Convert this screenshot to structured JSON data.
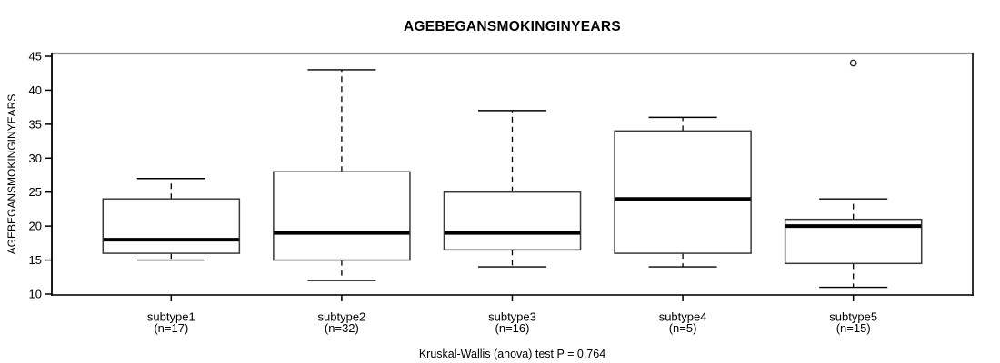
{
  "title": "AGEBEGANSMOKINGINYEARS",
  "footer": "Kruskal-Wallis (anova) test P = 0.764",
  "chart_data": {
    "type": "boxplot",
    "title": "AGEBEGANSMOKINGINYEARS",
    "ylabel": "AGEBEGANSMOKINGINYEARS",
    "xlabel": "",
    "ylim": [
      10,
      45
    ],
    "yticks": [
      10,
      15,
      20,
      25,
      30,
      35,
      40,
      45
    ],
    "grid": false,
    "legend": "none",
    "annotation": "Kruskal-Wallis (anova) test P = 0.764",
    "groups": [
      {
        "label": "subtype1",
        "sublabel": "(n=17)",
        "n": 17,
        "whisker_low": 15,
        "q1": 16,
        "median": 18,
        "q3": 24,
        "whisker_high": 27,
        "outliers": []
      },
      {
        "label": "subtype2",
        "sublabel": "(n=32)",
        "n": 32,
        "whisker_low": 12,
        "q1": 15,
        "median": 19,
        "q3": 28,
        "whisker_high": 43,
        "outliers": []
      },
      {
        "label": "subtype3",
        "sublabel": "(n=16)",
        "n": 16,
        "whisker_low": 14,
        "q1": 16.5,
        "median": 19,
        "q3": 25,
        "whisker_high": 37,
        "outliers": []
      },
      {
        "label": "subtype4",
        "sublabel": "(n=5)",
        "n": 5,
        "whisker_low": 14,
        "q1": 16,
        "median": 24,
        "q3": 34,
        "whisker_high": 36,
        "outliers": []
      },
      {
        "label": "subtype5",
        "sublabel": "(n=15)",
        "n": 15,
        "whisker_low": 11,
        "q1": 14.5,
        "median": 20,
        "q3": 21,
        "whisker_high": 24,
        "outliers": [
          44
        ]
      }
    ],
    "colors": {
      "box_fill": "#ffffff",
      "box_stroke": "#3a3a3a",
      "median": "#000000",
      "whisker": "#000000",
      "border_top": "#8f8f8f",
      "border": "#1c1c1c",
      "text": "#000000"
    }
  }
}
